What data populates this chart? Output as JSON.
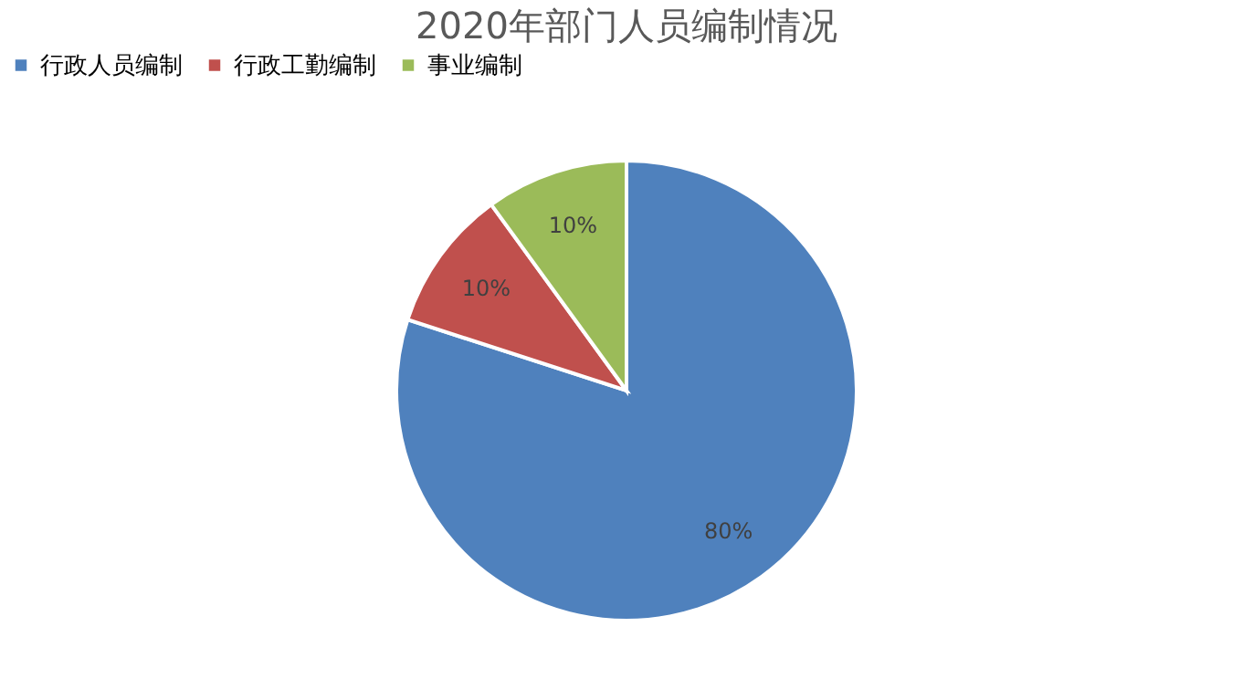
{
  "chart_data": {
    "type": "pie",
    "title": "2020年部门人员编制情况",
    "categories": [
      "行政人员编制",
      "行政工勤编制",
      "事业编制"
    ],
    "values": [
      80,
      10,
      10
    ],
    "colors": [
      "#4f81bd",
      "#c0504d",
      "#9bbb59"
    ],
    "value_labels": [
      "80%",
      "10%",
      "10%"
    ],
    "legend": "top"
  }
}
